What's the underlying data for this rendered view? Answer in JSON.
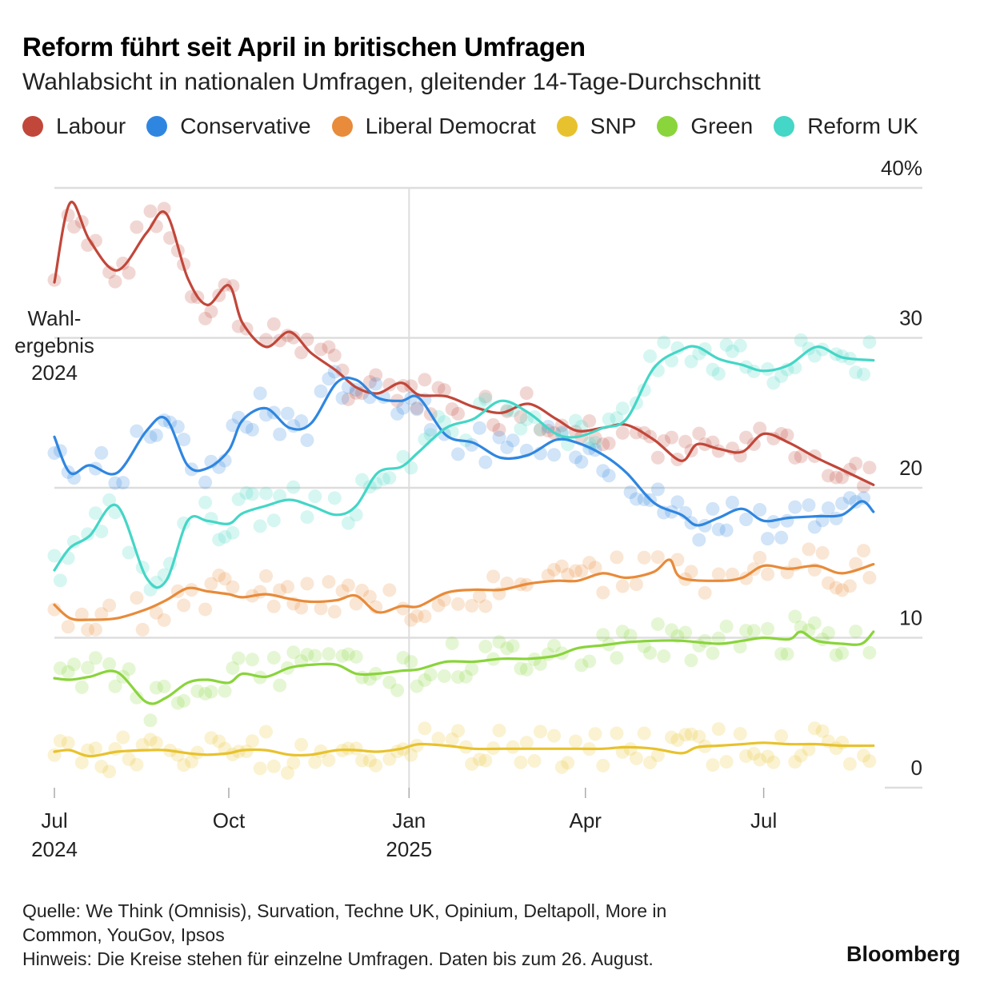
{
  "title": "Reform führt seit April in britischen Umfragen",
  "subtitle": "Wahlabsicht in nationalen Umfragen, gleitender 14-Tage-Durchschnitt",
  "source_line_1": "Quelle: We Think (Omnisis), Survation, Techne UK, Opinium, Deltapoll, More in",
  "source_line_2": "Common, YouGov, Ipsos",
  "note": "Hinweis: Die Kreise stehen für einzelne Umfragen. Daten bis zum 26. August.",
  "brand": "Bloomberg",
  "colors": {
    "Labour": "#c1473a",
    "Conservative": "#2f86e0",
    "Liberal Democrat": "#e88b3a",
    "SNP": "#e8c22e",
    "Green": "#8ad43c",
    "Reform UK": "#44d6c6",
    "grid": "#dddddd"
  },
  "chart_data": {
    "type": "line",
    "title": "Reform führt seit April in britischen Umfragen",
    "subtitle": "Wahlabsicht in nationalen Umfragen, gleitender 14-Tage-Durchschnitt",
    "xlim": [
      "2024-07-04",
      "2025-09-20"
    ],
    "ylim": [
      0,
      40
    ],
    "y_ticks": [
      {
        "value": 0,
        "label": "0"
      },
      {
        "value": 10,
        "label": "10"
      },
      {
        "value": 20,
        "label": "20"
      },
      {
        "value": 30,
        "label": "30"
      },
      {
        "value": 40,
        "label": "40%"
      }
    ],
    "x_ticks": [
      {
        "date": "2024-07-04",
        "label": "Jul",
        "sublabel": "2024"
      },
      {
        "date": "2024-10-01",
        "label": "Oct",
        "sublabel": ""
      },
      {
        "date": "2025-01-01",
        "label": "Jan",
        "sublabel": "2025"
      },
      {
        "date": "2025-04-01",
        "label": "Apr",
        "sublabel": ""
      },
      {
        "date": "2025-07-01",
        "label": "Jul",
        "sublabel": ""
      }
    ],
    "reference_line": {
      "date": "2025-01-01"
    },
    "election_label": [
      "Wahl-",
      "ergebnis",
      "2024"
    ],
    "grid": true,
    "legend_position": "top",
    "series": [
      {
        "name": "Labour",
        "points": [
          [
            "2024-07-04",
            33.7
          ],
          [
            "2024-07-12",
            39
          ],
          [
            "2024-07-22",
            36.5
          ],
          [
            "2024-08-05",
            34.5
          ],
          [
            "2024-08-20",
            37
          ],
          [
            "2024-08-30",
            38.3
          ],
          [
            "2024-09-10",
            34
          ],
          [
            "2024-09-20",
            32.2
          ],
          [
            "2024-10-01",
            33.5
          ],
          [
            "2024-10-08",
            31
          ],
          [
            "2024-10-20",
            29.4
          ],
          [
            "2024-11-01",
            30.4
          ],
          [
            "2024-11-12",
            29
          ],
          [
            "2024-11-25",
            27.8
          ],
          [
            "2024-12-05",
            26.7
          ],
          [
            "2024-12-16",
            26.3
          ],
          [
            "2024-12-28",
            27
          ],
          [
            "2025-01-06",
            26.2
          ],
          [
            "2025-01-20",
            26.1
          ],
          [
            "2025-02-03",
            25.4
          ],
          [
            "2025-02-17",
            25
          ],
          [
            "2025-03-03",
            25.6
          ],
          [
            "2025-03-17",
            24.6
          ],
          [
            "2025-03-28",
            23.8
          ],
          [
            "2025-04-10",
            24
          ],
          [
            "2025-04-22",
            24.2
          ],
          [
            "2025-05-06",
            23.2
          ],
          [
            "2025-05-20",
            21.8
          ],
          [
            "2025-05-28",
            22.9
          ],
          [
            "2025-06-08",
            22.6
          ],
          [
            "2025-06-20",
            22.4
          ],
          [
            "2025-07-01",
            23.6
          ],
          [
            "2025-07-14",
            23
          ],
          [
            "2025-07-28",
            22
          ],
          [
            "2025-08-10",
            21.2
          ],
          [
            "2025-08-26",
            20.2
          ]
        ]
      },
      {
        "name": "Conservative",
        "points": [
          [
            "2024-07-04",
            23.4
          ],
          [
            "2024-07-12",
            21
          ],
          [
            "2024-07-22",
            21.5
          ],
          [
            "2024-08-05",
            21
          ],
          [
            "2024-08-20",
            23.8
          ],
          [
            "2024-08-30",
            24.6
          ],
          [
            "2024-09-10",
            21.5
          ],
          [
            "2024-09-20",
            21.3
          ],
          [
            "2024-10-01",
            22.5
          ],
          [
            "2024-10-08",
            24.5
          ],
          [
            "2024-10-20",
            25.3
          ],
          [
            "2024-11-01",
            24
          ],
          [
            "2024-11-12",
            24.3
          ],
          [
            "2024-11-25",
            27
          ],
          [
            "2024-12-05",
            27.2
          ],
          [
            "2024-12-16",
            26
          ],
          [
            "2024-12-28",
            25.8
          ],
          [
            "2025-01-06",
            26
          ],
          [
            "2025-01-20",
            23.5
          ],
          [
            "2025-02-03",
            23
          ],
          [
            "2025-02-17",
            22
          ],
          [
            "2025-03-03",
            22.2
          ],
          [
            "2025-03-17",
            23.2
          ],
          [
            "2025-03-28",
            23
          ],
          [
            "2025-04-10",
            22.2
          ],
          [
            "2025-04-22",
            21
          ],
          [
            "2025-05-06",
            19
          ],
          [
            "2025-05-20",
            18.2
          ],
          [
            "2025-05-28",
            17.5
          ],
          [
            "2025-06-08",
            18
          ],
          [
            "2025-06-20",
            18.6
          ],
          [
            "2025-07-01",
            17.8
          ],
          [
            "2025-07-14",
            18
          ],
          [
            "2025-07-28",
            18.1
          ],
          [
            "2025-08-10",
            18.2
          ],
          [
            "2025-08-20",
            19.1
          ],
          [
            "2025-08-26",
            18.4
          ]
        ]
      },
      {
        "name": "Liberal Democrat",
        "points": [
          [
            "2024-07-04",
            12.2
          ],
          [
            "2024-07-12",
            11.3
          ],
          [
            "2024-07-22",
            11.2
          ],
          [
            "2024-08-05",
            11.3
          ],
          [
            "2024-08-20",
            11.9
          ],
          [
            "2024-08-30",
            12.5
          ],
          [
            "2024-09-10",
            13.3
          ],
          [
            "2024-09-20",
            13.1
          ],
          [
            "2024-10-01",
            12.9
          ],
          [
            "2024-10-08",
            12.7
          ],
          [
            "2024-10-20",
            12.9
          ],
          [
            "2024-11-01",
            12.6
          ],
          [
            "2024-11-12",
            12.4
          ],
          [
            "2024-11-25",
            12.5
          ],
          [
            "2024-12-05",
            12.8
          ],
          [
            "2024-12-16",
            11.7
          ],
          [
            "2024-12-28",
            12.1
          ],
          [
            "2025-01-06",
            12.1
          ],
          [
            "2025-01-20",
            13
          ],
          [
            "2025-02-03",
            13.2
          ],
          [
            "2025-02-17",
            13.2
          ],
          [
            "2025-03-03",
            13.6
          ],
          [
            "2025-03-17",
            13.8
          ],
          [
            "2025-03-28",
            13.8
          ],
          [
            "2025-04-10",
            14.3
          ],
          [
            "2025-04-22",
            14
          ],
          [
            "2025-05-06",
            14.4
          ],
          [
            "2025-05-14",
            15.2
          ],
          [
            "2025-05-20",
            14
          ],
          [
            "2025-06-08",
            13.8
          ],
          [
            "2025-06-20",
            14
          ],
          [
            "2025-07-01",
            14.8
          ],
          [
            "2025-07-14",
            14.6
          ],
          [
            "2025-07-28",
            14.8
          ],
          [
            "2025-08-10",
            14.3
          ],
          [
            "2025-08-26",
            14.9
          ]
        ]
      },
      {
        "name": "SNP",
        "points": [
          [
            "2024-07-04",
            2.4
          ],
          [
            "2024-07-12",
            2.5
          ],
          [
            "2024-07-22",
            2.1
          ],
          [
            "2024-08-05",
            2.4
          ],
          [
            "2024-08-20",
            2.5
          ],
          [
            "2024-08-30",
            2.5
          ],
          [
            "2024-09-10",
            2.3
          ],
          [
            "2024-09-20",
            2.2
          ],
          [
            "2024-10-01",
            2.3
          ],
          [
            "2024-10-08",
            2.5
          ],
          [
            "2024-10-20",
            2.5
          ],
          [
            "2024-11-01",
            2.2
          ],
          [
            "2024-11-12",
            2.2
          ],
          [
            "2024-11-25",
            2.5
          ],
          [
            "2024-12-05",
            2.5
          ],
          [
            "2024-12-16",
            2.4
          ],
          [
            "2024-12-28",
            2.6
          ],
          [
            "2025-01-06",
            2.9
          ],
          [
            "2025-01-20",
            2.8
          ],
          [
            "2025-02-03",
            2.6
          ],
          [
            "2025-02-17",
            2.6
          ],
          [
            "2025-03-03",
            2.6
          ],
          [
            "2025-03-17",
            2.6
          ],
          [
            "2025-03-28",
            2.6
          ],
          [
            "2025-04-10",
            2.6
          ],
          [
            "2025-04-22",
            2.7
          ],
          [
            "2025-05-06",
            2.6
          ],
          [
            "2025-05-20",
            2.3
          ],
          [
            "2025-05-28",
            2.7
          ],
          [
            "2025-06-08",
            2.8
          ],
          [
            "2025-06-20",
            2.9
          ],
          [
            "2025-07-01",
            3
          ],
          [
            "2025-07-14",
            2.9
          ],
          [
            "2025-07-28",
            2.9
          ],
          [
            "2025-08-10",
            2.8
          ],
          [
            "2025-08-26",
            2.8
          ]
        ]
      },
      {
        "name": "Green",
        "points": [
          [
            "2024-07-04",
            7.3
          ],
          [
            "2024-07-12",
            7.2
          ],
          [
            "2024-07-22",
            7.4
          ],
          [
            "2024-08-05",
            7.7
          ],
          [
            "2024-08-20",
            5.7
          ],
          [
            "2024-08-30",
            6
          ],
          [
            "2024-09-10",
            7
          ],
          [
            "2024-09-20",
            7.2
          ],
          [
            "2024-10-01",
            7
          ],
          [
            "2024-10-08",
            7.6
          ],
          [
            "2024-10-20",
            7.4
          ],
          [
            "2024-11-01",
            8
          ],
          [
            "2024-11-12",
            8.2
          ],
          [
            "2024-11-25",
            8.2
          ],
          [
            "2024-12-05",
            7.6
          ],
          [
            "2024-12-16",
            7.6
          ],
          [
            "2024-12-28",
            7.8
          ],
          [
            "2025-01-06",
            7.9
          ],
          [
            "2025-01-20",
            8.4
          ],
          [
            "2025-02-03",
            8.4
          ],
          [
            "2025-02-17",
            8.6
          ],
          [
            "2025-03-03",
            8.6
          ],
          [
            "2025-03-17",
            8.8
          ],
          [
            "2025-03-28",
            9.3
          ],
          [
            "2025-04-10",
            9.5
          ],
          [
            "2025-04-22",
            9.7
          ],
          [
            "2025-05-06",
            9.8
          ],
          [
            "2025-05-20",
            9.8
          ],
          [
            "2025-06-08",
            9.6
          ],
          [
            "2025-06-20",
            9.8
          ],
          [
            "2025-07-01",
            10
          ],
          [
            "2025-07-14",
            9.9
          ],
          [
            "2025-07-20",
            10.4
          ],
          [
            "2025-07-28",
            9.8
          ],
          [
            "2025-08-10",
            9.6
          ],
          [
            "2025-08-20",
            9.6
          ],
          [
            "2025-08-26",
            10.4
          ]
        ]
      },
      {
        "name": "Reform UK",
        "points": [
          [
            "2024-07-04",
            14.5
          ],
          [
            "2024-07-12",
            16
          ],
          [
            "2024-07-22",
            16.8
          ],
          [
            "2024-08-05",
            18.8
          ],
          [
            "2024-08-20",
            14
          ],
          [
            "2024-08-30",
            13.8
          ],
          [
            "2024-09-10",
            17.8
          ],
          [
            "2024-09-20",
            17.8
          ],
          [
            "2024-10-01",
            17.6
          ],
          [
            "2024-10-08",
            18.3
          ],
          [
            "2024-10-20",
            18.8
          ],
          [
            "2024-11-01",
            19.2
          ],
          [
            "2024-11-12",
            18.8
          ],
          [
            "2024-11-25",
            18.2
          ],
          [
            "2024-12-05",
            18.8
          ],
          [
            "2024-12-16",
            21
          ],
          [
            "2024-12-28",
            21.4
          ],
          [
            "2025-01-06",
            22.4
          ],
          [
            "2025-01-20",
            24
          ],
          [
            "2025-02-03",
            24.6
          ],
          [
            "2025-02-17",
            25.8
          ],
          [
            "2025-03-03",
            25
          ],
          [
            "2025-03-17",
            23.6
          ],
          [
            "2025-03-28",
            23.4
          ],
          [
            "2025-04-10",
            24
          ],
          [
            "2025-04-22",
            24.6
          ],
          [
            "2025-05-06",
            28
          ],
          [
            "2025-05-20",
            29.2
          ],
          [
            "2025-05-28",
            29.4
          ],
          [
            "2025-06-08",
            28.6
          ],
          [
            "2025-06-20",
            28.2
          ],
          [
            "2025-07-01",
            27.8
          ],
          [
            "2025-07-14",
            28.2
          ],
          [
            "2025-07-28",
            29.4
          ],
          [
            "2025-08-10",
            28.7
          ],
          [
            "2025-08-26",
            28.5
          ]
        ]
      }
    ]
  }
}
